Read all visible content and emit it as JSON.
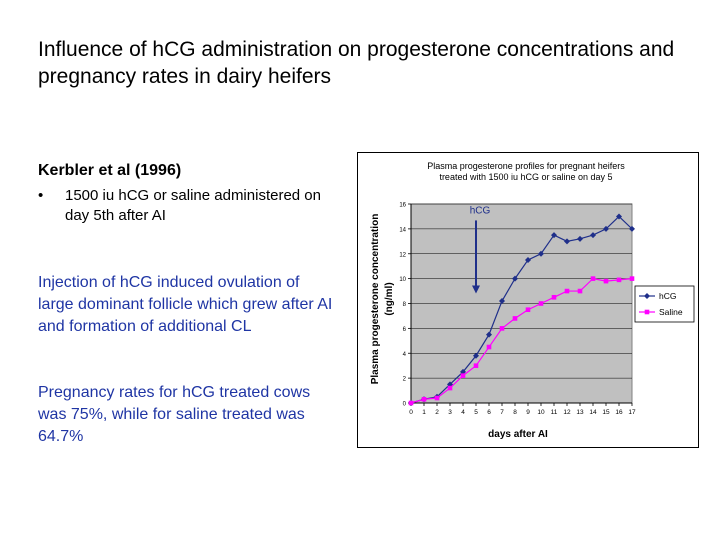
{
  "slide": {
    "title": "Influence of hCG administration on progesterone concentrations and pregnancy rates in dairy heifers",
    "reference": "Kerbler et al (1996)",
    "bullet_symbol": "•",
    "bullet": "1500 iu hCG or saline administered on day 5th after AI",
    "paragraph1": "Injection of hCG induced ovulation of large dominant follicle which grew after AI and formation of additional CL",
    "paragraph2": "Pregnancy rates for hCG treated cows was 75%, while for saline treated was 64.7%"
  },
  "chart_data": {
    "type": "line",
    "title_line1": "Plasma progesterone profiles for pregnant heifers",
    "title_line2": "treated with 1500 iu hCG or saline on day 5",
    "xlabel": "days after AI",
    "ylabel_line1": "Plasma progesterone concentration",
    "ylabel_line2": "(ng/ml)",
    "x": [
      0,
      1,
      2,
      3,
      4,
      5,
      6,
      7,
      8,
      9,
      10,
      11,
      12,
      13,
      14,
      15,
      16,
      17
    ],
    "ylim": [
      0,
      16
    ],
    "yticks": [
      0,
      2,
      4,
      6,
      8,
      10,
      12,
      14,
      16
    ],
    "grid": true,
    "legend_position": "right",
    "plot_background": "#c0c0c0",
    "series": [
      {
        "name": "hCG",
        "color": "#1f2f8a",
        "marker": "diamond",
        "values": [
          0,
          0.3,
          0.5,
          1.5,
          2.5,
          3.8,
          5.5,
          8.2,
          10,
          11.5,
          12,
          13.5,
          13,
          13.2,
          13.5,
          14,
          15,
          14
        ]
      },
      {
        "name": "Saline",
        "color": "#ff00ff",
        "marker": "square",
        "values": [
          0,
          0.3,
          0.4,
          1.2,
          2.2,
          3,
          4.5,
          6,
          6.8,
          7.5,
          8,
          8.5,
          9,
          9,
          10,
          9.8,
          9.9,
          10
        ]
      }
    ],
    "annotation": {
      "label": "hCG",
      "x": 5,
      "y_from": 15,
      "y_to": 8.8,
      "color": "#1f2f8a"
    }
  }
}
